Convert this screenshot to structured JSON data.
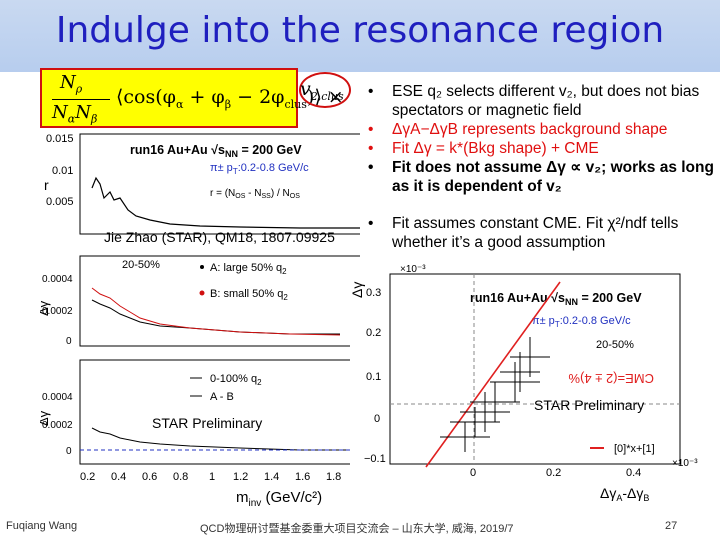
{
  "slide": {
    "title": "Indulge into the resonance region",
    "formula": {
      "numerator": "N",
      "numerator_sub": "ρ",
      "denominator": "N",
      "denominator_sub1": "α",
      "denominator_mid": "N",
      "denominator_sub2": "β",
      "bracket_expr": "⟨cos(φ",
      "bracket_expr2": " + φ",
      "bracket_expr3": " − 2φ",
      "bracket_expr4": ")⟩ ×",
      "sub_alpha": "α",
      "sub_beta": "β",
      "sub_clus": "clus",
      "v2": "v",
      "v2_sub": "2,clus"
    },
    "bullets": [
      "ESE q₂ selects different v₂, but does not bias spectators or magnetic field",
      "ΔγA−ΔγB represents background shape",
      "Fit Δγ = k*(Bkg shape) + CME",
      "Fit does not assume Δγ ∝ v₂; works as long as it is dependent of v₂",
      "Fit assumes constant CME. Fit χ²/ndf tells whether it’s a good assumption"
    ],
    "credit": "Jie Zhao (STAR), QM18, 1807.09925",
    "prelim_left": "STAR Preliminary",
    "prelim_right": "STAR Preliminary",
    "footer": {
      "author": "Fuqiang Wang",
      "event": "QCD物理研讨暨基金委重大项目交流会 – 山东大学, 威海, 2019/7",
      "page": "27"
    }
  },
  "left_plot": {
    "run_label": "run16 Au+Au √s",
    "run_sub": "NN",
    "run_energy": " = 200 GeV",
    "pt_label": "π± p",
    "pt_sub": "T",
    "pt_range": ":0.2-0.8 GeV/c",
    "r_def": "r = (N",
    "r_def2": "OS",
    "r_def3": " - N",
    "r_def4": "SS",
    "r_def5": ") / N",
    "r_def6": "OS",
    "panel1_ylabel": "r",
    "panel1_ticks": [
      "0.015",
      "0.01",
      "0.005"
    ],
    "panel2_ylabel": "Δγ",
    "panel2_ticks": [
      "0.0004",
      "0.0002",
      "0"
    ],
    "panel2_centrality": "20-50%",
    "panel2_legend_a": "A: large 50% q",
    "panel2_legend_b": "B: small 50% q",
    "panel2_legend_sub": "2",
    "panel3_ylabel": "Δγ",
    "panel3_ticks": [
      "0.0004",
      "0.0002",
      "0"
    ],
    "panel3_legend_a": "0-100% q",
    "panel3_legend_sub": "2",
    "panel3_legend_b": "A - B",
    "xticks": [
      "0.2",
      "0.4",
      "0.6",
      "0.8",
      "1",
      "1.2",
      "1.4",
      "1.6",
      "1.8"
    ],
    "xlabel": "m",
    "xlabel_sub": "inv",
    "xlabel_unit": " (GeV/c²)"
  },
  "right_plot": {
    "ylabel": "Δγ",
    "y_exponent": "×10⁻³",
    "yticks": [
      "0.3",
      "0.2",
      "0.1",
      "0",
      "−0.1"
    ],
    "xticks": [
      "0",
      "0.2",
      "0.4"
    ],
    "x_exponent": "×10⁻³",
    "xlabel": "Δγ",
    "xlabel_subA": "A",
    "xlabel_mid": "-Δγ",
    "xlabel_subB": "B",
    "run_label": "run16 Au+Au √s",
    "run_sub": "NN",
    "run_energy": " = 200 GeV",
    "pt_label": "π± p",
    "pt_sub": "T",
    "pt_range": ":0.2-0.8 GeV/c",
    "centrality": "20-50%",
    "fit_text": "CME=(2 ± 4)%",
    "fit_legend": "[0]*x+[1]",
    "fit_color": "#e02020"
  }
}
